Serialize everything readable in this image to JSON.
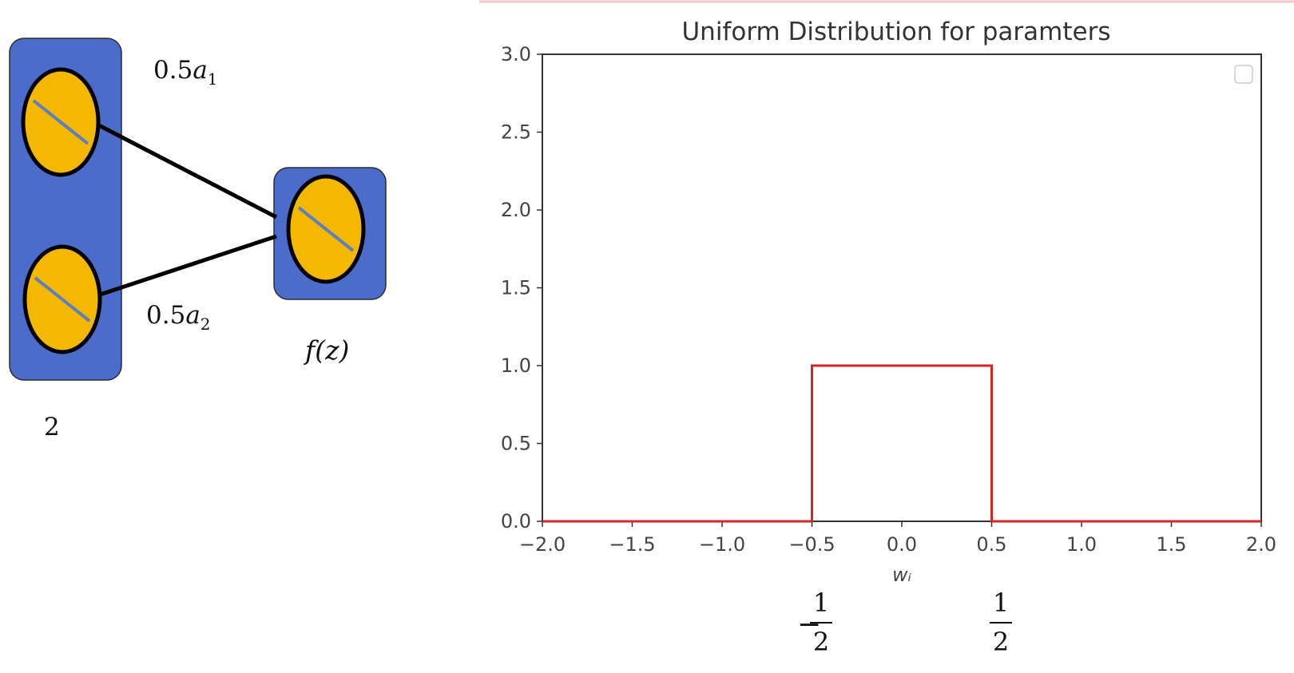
{
  "diagram": {
    "edge_top_label": {
      "coef": "0.5",
      "var": "a",
      "sub": "1"
    },
    "edge_bottom_label": {
      "coef": "0.5",
      "var": "a",
      "sub": "2"
    },
    "input_layer_label": "2",
    "output_label": "f(z)",
    "colors": {
      "box": "#4b6ccb",
      "node": "#f5b800",
      "edge": "#000000",
      "node_line": "#5f7fbe"
    }
  },
  "chart_data": {
    "type": "line",
    "title": "Uniform Distribution for paramters",
    "xlabel": "wᵢ",
    "ylabel": "",
    "xlim": [
      -2.0,
      2.0
    ],
    "ylim": [
      0.0,
      3.0
    ],
    "xticks": [
      "−2.0",
      "−1.5",
      "−1.0",
      "−0.5",
      "0.0",
      "0.5",
      "1.0",
      "1.5",
      "2.0"
    ],
    "yticks": [
      "0.0",
      "0.5",
      "1.0",
      "1.5",
      "2.0",
      "2.5",
      "3.0"
    ],
    "series": [
      {
        "color": "#d62728",
        "x": [
          -2.0,
          -0.5,
          -0.5,
          0.5,
          0.5,
          2.0
        ],
        "y": [
          0.0,
          0.0,
          1.0,
          1.0,
          0.0,
          0.0
        ]
      }
    ],
    "grid": false,
    "legend": "top-right (empty)",
    "annotations": [
      {
        "sign": "−",
        "numerator": "1",
        "denominator": "2"
      },
      {
        "sign": "",
        "numerator": "1",
        "denominator": "2"
      }
    ]
  }
}
